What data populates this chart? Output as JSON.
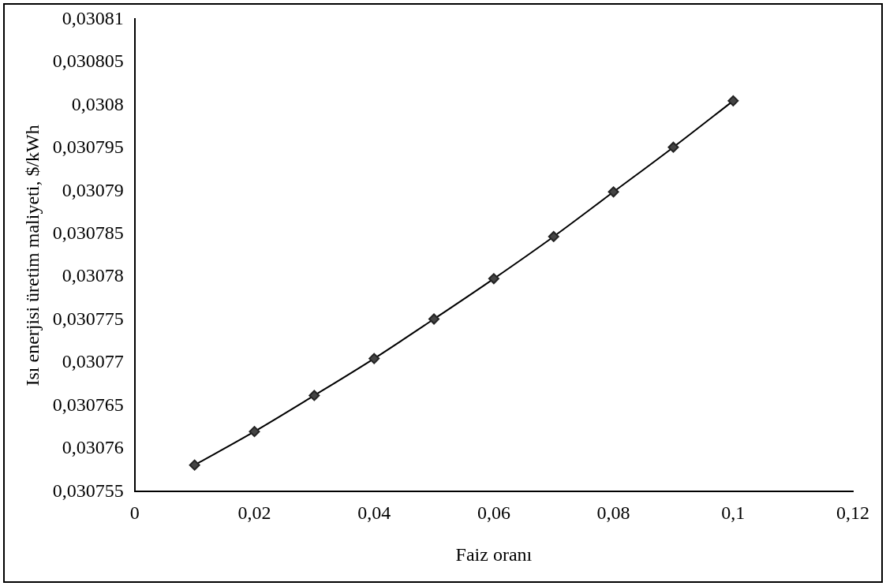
{
  "chart_data": {
    "type": "line",
    "xlabel": "Faiz oranı",
    "ylabel": "Isı enerjisi üretim maliyeti, $/kWh",
    "x": [
      0.01,
      0.02,
      0.03,
      0.04,
      0.05,
      0.06,
      0.07,
      0.08,
      0.09,
      0.1
    ],
    "series": [
      {
        "color": "#000000",
        "values": [
          0.0307581,
          0.030762,
          0.0307662,
          0.0307705,
          0.0307751,
          0.0307798,
          0.0307847,
          0.0307899,
          0.0307951,
          0.0308005
        ]
      }
    ],
    "xlim": [
      0,
      0.12
    ],
    "xticks": [
      {
        "value": 0,
        "label": "0"
      },
      {
        "value": 0.02,
        "label": "0,02"
      },
      {
        "value": 0.04,
        "label": "0,04"
      },
      {
        "value": 0.06,
        "label": "0,06"
      },
      {
        "value": 0.08,
        "label": "0,08"
      },
      {
        "value": 0.1,
        "label": "0,1"
      },
      {
        "value": 0.12,
        "label": "0,12"
      }
    ],
    "ylim": [
      0.030755,
      0.03081
    ],
    "yticks": [
      {
        "value": 0.030755,
        "label": "0,030755"
      },
      {
        "value": 0.03076,
        "label": "0,03076"
      },
      {
        "value": 0.030765,
        "label": "0,030765"
      },
      {
        "value": 0.03077,
        "label": "0,03077"
      },
      {
        "value": 0.030775,
        "label": "0,030775"
      },
      {
        "value": 0.03078,
        "label": "0,03078"
      },
      {
        "value": 0.030785,
        "label": "0,030785"
      },
      {
        "value": 0.03079,
        "label": "0,03079"
      },
      {
        "value": 0.030795,
        "label": "0,030795"
      },
      {
        "value": 0.0308,
        "label": "0,0308"
      },
      {
        "value": 0.030805,
        "label": "0,030805"
      },
      {
        "value": 0.03081,
        "label": "0,03081"
      }
    ],
    "grid": false,
    "legend": false,
    "marker": "diamond",
    "line_style": "solid"
  }
}
